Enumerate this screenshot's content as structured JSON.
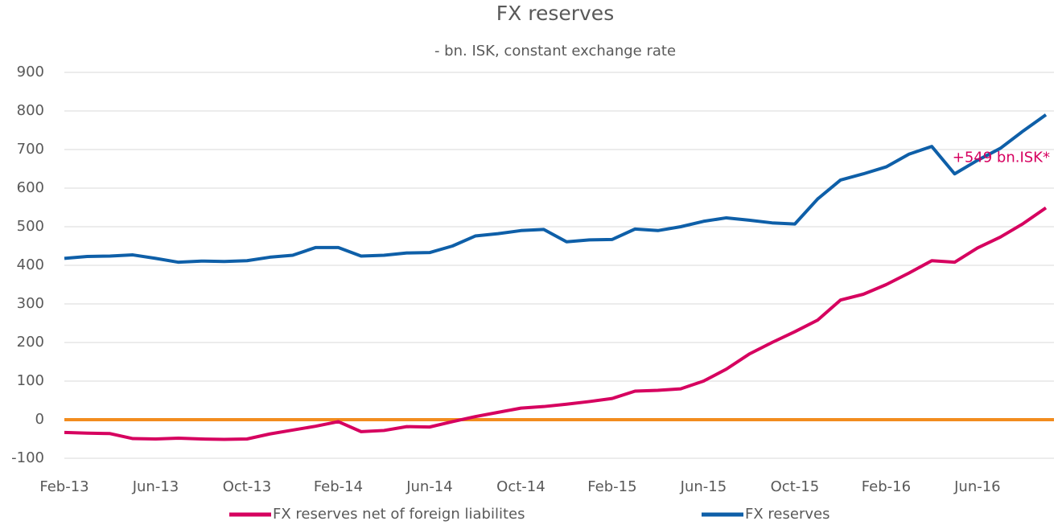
{
  "chart_data": {
    "type": "line",
    "title": "FX reserves",
    "subtitle": "- bn. ISK, constant exchange rate",
    "categories": [
      "Feb-13",
      null,
      null,
      null,
      "Jun-13",
      null,
      null,
      null,
      "Oct-13",
      null,
      null,
      null,
      "Feb-14",
      null,
      null,
      null,
      "Jun-14",
      null,
      null,
      null,
      "Oct-14",
      null,
      null,
      null,
      "Feb-15",
      null,
      null,
      null,
      "Jun-15",
      null,
      null,
      null,
      "Oct-15",
      null,
      null,
      null,
      "Feb-16",
      null,
      null,
      null,
      "Jun-16",
      null,
      null,
      null
    ],
    "series": [
      {
        "name": "FX reserves net of foreign liabilites",
        "color": "#d6005f",
        "values": [
          -33,
          -35,
          -36,
          -49,
          -50,
          -48,
          -50,
          -51,
          -50,
          -37,
          -27,
          -17,
          -5,
          -31,
          -28,
          -18,
          -19,
          -5,
          8,
          19,
          30,
          34,
          40,
          47,
          55,
          74,
          76,
          80,
          100,
          131,
          170,
          200,
          228,
          258,
          310,
          325,
          350,
          380,
          412,
          408,
          445,
          473,
          508,
          549
        ]
      },
      {
        "name": "FX reserves",
        "color": "#0e5fa8",
        "values": [
          418,
          423,
          424,
          427,
          418,
          408,
          411,
          410,
          412,
          421,
          426,
          446,
          446,
          424,
          426,
          432,
          433,
          450,
          476,
          482,
          490,
          493,
          461,
          466,
          467,
          494,
          490,
          500,
          514,
          523,
          517,
          510,
          507,
          572,
          621,
          637,
          655,
          688,
          708,
          637,
          672,
          703,
          748,
          790
        ]
      }
    ],
    "reference_line": {
      "value": 0,
      "color": "#f28c1e"
    },
    "annotations": [
      {
        "text": "+549 bn.ISK*",
        "series": 0,
        "index": 43,
        "color": "#d6005f"
      }
    ],
    "ylim": [
      -100,
      900
    ],
    "yticks": [
      -100,
      0,
      100,
      200,
      300,
      400,
      500,
      600,
      700,
      800,
      900
    ],
    "grid": true,
    "legend": "bottom"
  }
}
